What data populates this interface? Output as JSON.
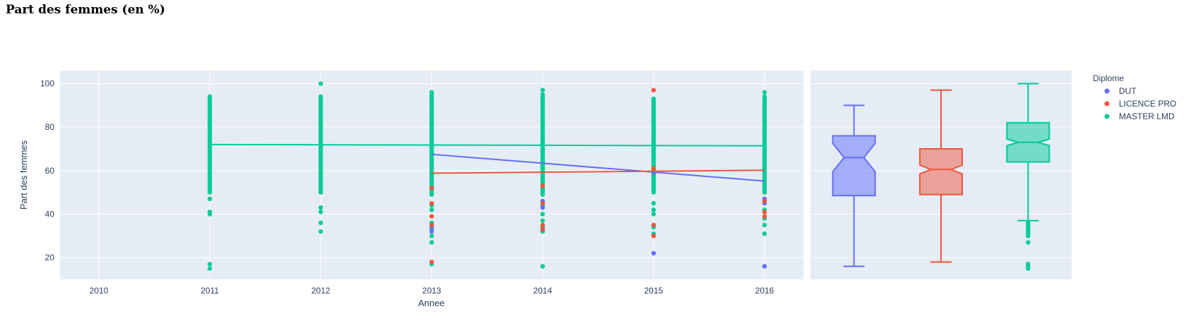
{
  "page": {
    "title": "Part des femmes (en %)"
  },
  "chart_data": {
    "type": "scatter",
    "xlabel": "Annee",
    "ylabel": "Part des femmes",
    "xlim": [
      2009.65,
      2016.35
    ],
    "ylim": [
      10,
      106
    ],
    "x_ticks": [
      2010,
      2011,
      2012,
      2013,
      2014,
      2015,
      2016
    ],
    "y_ticks": [
      20,
      40,
      60,
      80,
      100
    ],
    "grid": true,
    "legend_title": "Diplome",
    "legend_position": "right",
    "series": [
      {
        "name": "DUT",
        "color": "#636efa",
        "trend": [
          [
            2013,
            67.5
          ],
          [
            2016,
            55.2
          ]
        ],
        "outliers": [
          [
            2013,
            32
          ],
          [
            2013,
            34
          ],
          [
            2014,
            43
          ],
          [
            2014,
            46
          ],
          [
            2015,
            22
          ],
          [
            2015,
            59
          ],
          [
            2016,
            16
          ],
          [
            2016,
            45
          ],
          [
            2016,
            47
          ]
        ],
        "box": {
          "min": 16,
          "q1": 48.5,
          "median": 66,
          "q3": 76,
          "max": 90,
          "notch_low": 59.5,
          "notch_high": 72.5,
          "outliers": []
        }
      },
      {
        "name": "LICENCE PRO",
        "color": "#ef553b",
        "trend": [
          [
            2013,
            58.8
          ],
          [
            2016,
            60.2
          ]
        ],
        "outliers": [
          [
            2013,
            18
          ],
          [
            2013,
            35
          ],
          [
            2013,
            39
          ],
          [
            2013,
            45
          ],
          [
            2013,
            52
          ],
          [
            2014,
            33
          ],
          [
            2014,
            35
          ],
          [
            2014,
            45
          ],
          [
            2014,
            53
          ],
          [
            2015,
            30
          ],
          [
            2015,
            35
          ],
          [
            2015,
            61
          ],
          [
            2015,
            97
          ],
          [
            2016,
            39
          ],
          [
            2016,
            41
          ],
          [
            2016,
            46
          ]
        ],
        "box": {
          "min": 18,
          "q1": 49,
          "median": 60.5,
          "q3": 70,
          "max": 97,
          "notch_low": 58.5,
          "notch_high": 62.5,
          "outliers": []
        }
      },
      {
        "name": "MASTER LMD",
        "color": "#00cc96",
        "trend": [
          [
            2011,
            72.0
          ],
          [
            2016,
            71.4
          ]
        ],
        "dense_ranges": [
          [
            2011,
            50,
            94
          ],
          [
            2012,
            50,
            94
          ],
          [
            2013,
            49,
            95
          ],
          [
            2014,
            49,
            95
          ],
          [
            2015,
            50,
            93
          ],
          [
            2016,
            50,
            94
          ]
        ],
        "extra_points": [
          [
            2011,
            15
          ],
          [
            2011,
            17
          ],
          [
            2011,
            40
          ],
          [
            2011,
            41
          ],
          [
            2011,
            47
          ],
          [
            2012,
            32
          ],
          [
            2012,
            36
          ],
          [
            2012,
            41
          ],
          [
            2012,
            43
          ],
          [
            2012,
            100
          ],
          [
            2013,
            17
          ],
          [
            2013,
            27
          ],
          [
            2013,
            30
          ],
          [
            2013,
            33
          ],
          [
            2013,
            36
          ],
          [
            2013,
            42
          ],
          [
            2013,
            44
          ],
          [
            2013,
            96
          ],
          [
            2014,
            16
          ],
          [
            2014,
            32
          ],
          [
            2014,
            34
          ],
          [
            2014,
            37
          ],
          [
            2014,
            40
          ],
          [
            2014,
            44
          ],
          [
            2014,
            97
          ],
          [
            2015,
            31
          ],
          [
            2015,
            34
          ],
          [
            2015,
            40
          ],
          [
            2015,
            42
          ],
          [
            2015,
            45
          ],
          [
            2016,
            31
          ],
          [
            2016,
            35
          ],
          [
            2016,
            38
          ],
          [
            2016,
            42
          ],
          [
            2016,
            96
          ]
        ],
        "box": {
          "min": 37,
          "q1": 64,
          "median": 73,
          "q3": 82,
          "max": 100,
          "notch_low": 71.5,
          "notch_high": 74.5,
          "outliers": [
            15,
            16,
            17,
            27,
            30,
            31,
            32,
            33,
            34,
            35,
            36
          ]
        }
      }
    ]
  }
}
